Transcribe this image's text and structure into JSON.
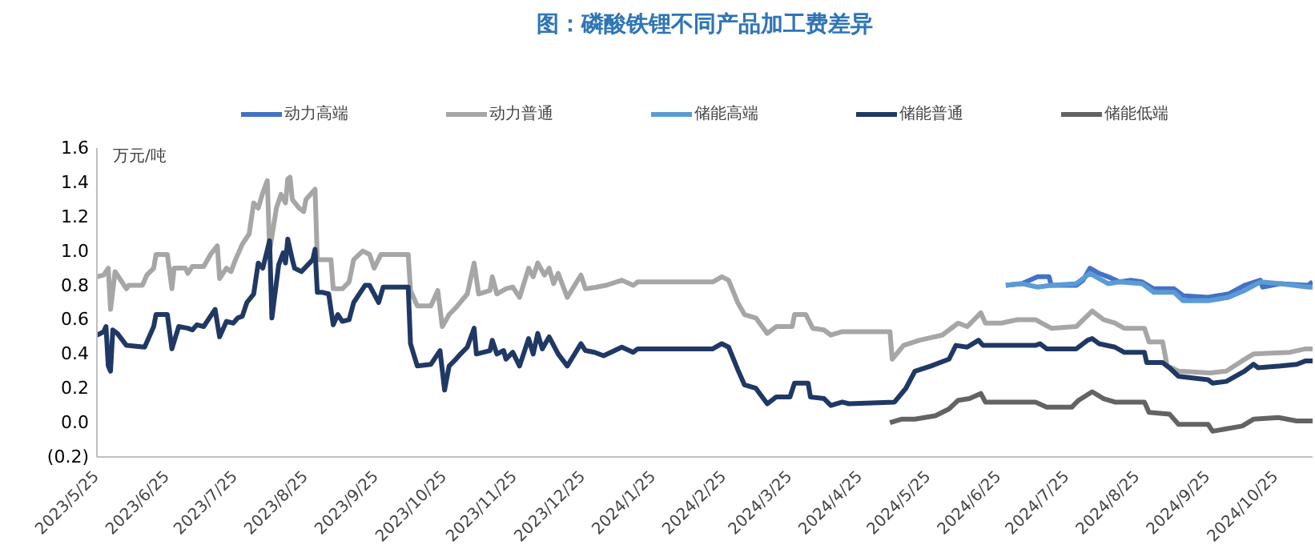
{
  "chart_data": {
    "type": "line",
    "title": "图：磷酸铁锂不同产品加工费差异",
    "ylabel": "万元/吨",
    "xlim": [
      "2023-05-25",
      "2024-11-10"
    ],
    "xticks": [
      {
        "value": "2023-05-25",
        "label": "2023/5/25"
      },
      {
        "value": "2023-06-25",
        "label": "2023/6/25"
      },
      {
        "value": "2023-07-25",
        "label": "2023/7/25"
      },
      {
        "value": "2023-08-25",
        "label": "2023/8/25"
      },
      {
        "value": "2023-09-25",
        "label": "2023/9/25"
      },
      {
        "value": "2023-10-25",
        "label": "2023/10/25"
      },
      {
        "value": "2023-11-25",
        "label": "2023/11/25"
      },
      {
        "value": "2023-12-25",
        "label": "2023/12/25"
      },
      {
        "value": "2024-01-25",
        "label": "2024/1/25"
      },
      {
        "value": "2024-02-25",
        "label": "2024/2/25"
      },
      {
        "value": "2024-03-25",
        "label": "2024/3/25"
      },
      {
        "value": "2024-04-25",
        "label": "2024/4/25"
      },
      {
        "value": "2024-05-25",
        "label": "2024/5/25"
      },
      {
        "value": "2024-06-25",
        "label": "2024/6/25"
      },
      {
        "value": "2024-07-25",
        "label": "2024/7/25"
      },
      {
        "value": "2024-08-25",
        "label": "2024/8/25"
      },
      {
        "value": "2024-09-25",
        "label": "2024/9/25"
      },
      {
        "value": "2024-10-25",
        "label": "2024/10/25"
      }
    ],
    "ylim": [
      -0.2,
      1.6
    ],
    "yticks": [
      {
        "value": -0.2,
        "label": "(0.2)"
      },
      {
        "value": 0,
        "label": "0.0"
      },
      {
        "value": 0.2,
        "label": "0.2"
      },
      {
        "value": 0.4,
        "label": "0.4"
      },
      {
        "value": 0.6,
        "label": "0.6"
      },
      {
        "value": 0.8,
        "label": "0.8"
      },
      {
        "value": 1,
        "label": "1.0"
      },
      {
        "value": 1.2,
        "label": "1.2"
      },
      {
        "value": 1.4,
        "label": "1.4"
      },
      {
        "value": 1.6,
        "label": "1.6"
      }
    ],
    "grid": false,
    "legend": "top",
    "marker": "none",
    "line_style": "solid",
    "series": [
      {
        "name": "动力高端",
        "color": "#4472c4",
        "x": [
          "2024-06-28",
          "2024-07-05",
          "2024-07-12",
          "2024-07-17",
          "2024-07-18",
          "2024-07-29",
          "2024-08-01",
          "2024-08-04",
          "2024-08-08",
          "2024-08-12",
          "2024-08-17",
          "2024-08-22",
          "2024-08-27",
          "2024-09-01",
          "2024-09-10",
          "2024-09-14",
          "2024-09-25",
          "2024-10-04",
          "2024-10-11",
          "2024-10-18",
          "2024-10-19",
          "2024-10-27",
          "2024-11-08",
          "2024-11-10"
        ],
        "values": [
          0.8,
          0.81,
          0.85,
          0.85,
          0.8,
          0.8,
          0.83,
          0.9,
          0.87,
          0.85,
          0.82,
          0.83,
          0.82,
          0.78,
          0.78,
          0.74,
          0.73,
          0.75,
          0.8,
          0.83,
          0.79,
          0.81,
          0.8,
          0.82
        ]
      },
      {
        "name": "动力普通",
        "color": "#a6a6a6",
        "x": [
          "2023-05-25",
          "2023-05-28",
          "2023-05-30",
          "2023-05-31",
          "2023-06-02",
          "2023-06-05",
          "2023-06-07",
          "2023-06-08",
          "2023-06-14",
          "2023-06-16",
          "2023-06-19",
          "2023-06-20",
          "2023-06-25",
          "2023-06-27",
          "2023-06-28",
          "2023-07-03",
          "2023-07-04",
          "2023-07-06",
          "2023-07-11",
          "2023-07-14",
          "2023-07-17",
          "2023-07-18",
          "2023-07-21",
          "2023-07-23",
          "2023-07-25",
          "2023-07-28",
          "2023-07-31",
          "2023-08-02",
          "2023-08-04",
          "2023-08-06",
          "2023-08-08",
          "2023-08-09",
          "2023-08-12",
          "2023-08-14",
          "2023-08-16",
          "2023-08-17",
          "2023-08-18",
          "2023-08-19",
          "2023-08-22",
          "2023-08-24",
          "2023-08-25",
          "2023-08-29",
          "2023-08-30",
          "2023-09-05",
          "2023-09-06",
          "2023-09-10",
          "2023-09-13",
          "2023-09-15",
          "2023-09-19",
          "2023-09-22",
          "2023-09-24",
          "2023-09-27",
          "2023-10-09",
          "2023-10-10",
          "2023-10-13",
          "2023-10-19",
          "2023-10-22",
          "2023-10-24",
          "2023-10-27",
          "2023-10-30",
          "2023-11-04",
          "2023-11-07",
          "2023-11-09",
          "2023-11-14",
          "2023-11-15",
          "2023-11-17",
          "2023-11-21",
          "2023-11-24",
          "2023-11-27",
          "2023-12-01",
          "2023-12-03",
          "2023-12-05",
          "2023-12-08",
          "2023-12-10",
          "2023-12-12",
          "2023-12-14",
          "2023-12-18",
          "2023-12-24",
          "2023-12-26",
          "2023-12-31",
          "2024-01-04",
          "2024-01-11",
          "2024-01-16",
          "2024-01-18",
          "2024-02-20",
          "2024-02-24",
          "2024-02-27",
          "2024-03-02",
          "2024-03-05",
          "2024-03-10",
          "2024-03-15",
          "2024-03-19",
          "2024-03-26",
          "2024-03-27",
          "2024-04-01",
          "2024-04-04",
          "2024-04-09",
          "2024-04-12",
          "2024-04-17",
          "2024-05-08",
          "2024-05-09",
          "2024-05-14",
          "2024-05-21",
          "2024-05-31",
          "2024-06-07",
          "2024-06-11",
          "2024-06-17",
          "2024-06-19",
          "2024-06-26",
          "2024-07-03",
          "2024-07-11",
          "2024-07-18",
          "2024-07-29",
          "2024-08-05",
          "2024-08-10",
          "2024-08-15",
          "2024-08-19",
          "2024-08-28",
          "2024-08-30",
          "2024-09-05",
          "2024-09-07",
          "2024-09-12",
          "2024-09-26",
          "2024-10-03",
          "2024-10-10",
          "2024-10-15",
          "2024-10-31",
          "2024-11-07",
          "2024-11-10"
        ],
        "values": [
          0.85,
          0.86,
          0.9,
          0.66,
          0.88,
          0.82,
          0.78,
          0.8,
          0.8,
          0.86,
          0.9,
          0.98,
          0.98,
          0.78,
          0.9,
          0.9,
          0.87,
          0.91,
          0.91,
          0.98,
          1.03,
          0.84,
          0.9,
          0.88,
          0.95,
          1.04,
          1.1,
          1.28,
          1.25,
          1.34,
          1.41,
          1.0,
          1.25,
          1.33,
          1.28,
          1.42,
          1.43,
          1.3,
          1.25,
          1.23,
          1.3,
          1.36,
          0.95,
          0.95,
          0.78,
          0.78,
          0.82,
          0.95,
          1.0,
          0.98,
          0.9,
          0.98,
          0.98,
          0.77,
          0.68,
          0.68,
          0.77,
          0.56,
          0.63,
          0.67,
          0.75,
          0.93,
          0.75,
          0.77,
          0.85,
          0.75,
          0.78,
          0.79,
          0.73,
          0.9,
          0.85,
          0.93,
          0.86,
          0.9,
          0.81,
          0.87,
          0.73,
          0.86,
          0.78,
          0.79,
          0.8,
          0.83,
          0.8,
          0.82,
          0.82,
          0.85,
          0.83,
          0.7,
          0.63,
          0.61,
          0.52,
          0.56,
          0.56,
          0.63,
          0.63,
          0.55,
          0.54,
          0.51,
          0.53,
          0.53,
          0.37,
          0.45,
          0.48,
          0.51,
          0.58,
          0.56,
          0.64,
          0.58,
          0.58,
          0.6,
          0.6,
          0.55,
          0.56,
          0.65,
          0.6,
          0.58,
          0.55,
          0.55,
          0.47,
          0.47,
          0.33,
          0.3,
          0.29,
          0.3,
          0.36,
          0.4,
          0.41,
          0.43,
          0.43
        ]
      },
      {
        "name": "储能高端",
        "color": "#5b9bd5",
        "x": [
          "2024-06-28",
          "2024-07-05",
          "2024-07-12",
          "2024-07-18",
          "2024-07-29",
          "2024-08-04",
          "2024-08-12",
          "2024-08-17",
          "2024-08-27",
          "2024-09-01",
          "2024-09-10",
          "2024-09-14",
          "2024-09-25",
          "2024-10-04",
          "2024-10-11",
          "2024-10-18",
          "2024-10-27",
          "2024-11-08",
          "2024-11-10"
        ],
        "values": [
          0.8,
          0.81,
          0.79,
          0.8,
          0.81,
          0.87,
          0.81,
          0.82,
          0.81,
          0.76,
          0.76,
          0.71,
          0.71,
          0.73,
          0.77,
          0.82,
          0.81,
          0.79,
          0.79
        ]
      },
      {
        "name": "储能普通",
        "color": "#203864",
        "x": [
          "2023-05-25",
          "2023-05-28",
          "2023-05-29",
          "2023-05-30",
          "2023-05-31",
          "2023-06-01",
          "2023-06-03",
          "2023-06-07",
          "2023-06-15",
          "2023-06-17",
          "2023-06-19",
          "2023-06-20",
          "2023-06-25",
          "2023-06-27",
          "2023-06-30",
          "2023-07-04",
          "2023-07-06",
          "2023-07-08",
          "2023-07-11",
          "2023-07-14",
          "2023-07-16",
          "2023-07-18",
          "2023-07-21",
          "2023-07-24",
          "2023-07-26",
          "2023-07-28",
          "2023-07-30",
          "2023-08-02",
          "2023-08-04",
          "2023-08-06",
          "2023-08-09",
          "2023-08-10",
          "2023-08-13",
          "2023-08-15",
          "2023-08-16",
          "2023-08-17",
          "2023-08-19",
          "2023-08-20",
          "2023-08-23",
          "2023-08-28",
          "2023-08-29",
          "2023-08-30",
          "2023-09-01",
          "2023-09-04",
          "2023-09-06",
          "2023-09-08",
          "2023-09-10",
          "2023-09-13",
          "2023-09-15",
          "2023-09-20",
          "2023-09-22",
          "2023-09-26",
          "2023-09-28",
          "2023-10-09",
          "2023-10-10",
          "2023-10-13",
          "2023-10-19",
          "2023-10-23",
          "2023-10-25",
          "2023-10-27",
          "2023-10-30",
          "2023-11-01",
          "2023-11-04",
          "2023-11-07",
          "2023-11-08",
          "2023-11-14",
          "2023-11-15",
          "2023-11-17",
          "2023-11-20",
          "2023-11-21",
          "2023-11-24",
          "2023-11-27",
          "2023-12-01",
          "2023-12-03",
          "2023-12-05",
          "2023-12-07",
          "2023-12-10",
          "2023-12-12",
          "2023-12-14",
          "2023-12-18",
          "2023-12-24",
          "2023-12-26",
          "2023-12-30",
          "2024-01-03",
          "2024-01-11",
          "2024-01-16",
          "2024-01-18",
          "2024-02-20",
          "2024-02-24",
          "2024-02-27",
          "2024-03-02",
          "2024-03-05",
          "2024-03-10",
          "2024-03-15",
          "2024-03-19",
          "2024-03-25",
          "2024-03-27",
          "2024-04-02",
          "2024-04-03",
          "2024-04-09",
          "2024-04-12",
          "2024-04-17",
          "2024-04-20",
          "2024-05-10",
          "2024-05-15",
          "2024-05-19",
          "2024-05-26",
          "2024-06-03",
          "2024-06-06",
          "2024-06-11",
          "2024-06-16",
          "2024-06-18",
          "2024-06-20",
          "2024-07-11",
          "2024-07-13",
          "2024-07-16",
          "2024-07-29",
          "2024-08-03",
          "2024-08-05",
          "2024-08-08",
          "2024-08-15",
          "2024-08-19",
          "2024-08-28",
          "2024-08-29",
          "2024-09-05",
          "2024-09-08",
          "2024-09-12",
          "2024-09-25",
          "2024-09-27",
          "2024-10-03",
          "2024-10-11",
          "2024-10-15",
          "2024-10-17",
          "2024-10-27",
          "2024-11-03",
          "2024-11-07",
          "2024-11-10"
        ],
        "values": [
          0.51,
          0.53,
          0.56,
          0.33,
          0.3,
          0.54,
          0.52,
          0.45,
          0.44,
          0.5,
          0.56,
          0.63,
          0.63,
          0.43,
          0.56,
          0.55,
          0.54,
          0.57,
          0.56,
          0.62,
          0.66,
          0.5,
          0.59,
          0.58,
          0.61,
          0.62,
          0.7,
          0.75,
          0.93,
          0.9,
          1.06,
          0.61,
          0.92,
          0.99,
          0.93,
          1.07,
          0.95,
          0.9,
          0.88,
          0.95,
          1.01,
          0.76,
          0.76,
          0.75,
          0.57,
          0.63,
          0.59,
          0.6,
          0.7,
          0.8,
          0.8,
          0.7,
          0.79,
          0.79,
          0.46,
          0.33,
          0.34,
          0.42,
          0.19,
          0.33,
          0.37,
          0.4,
          0.44,
          0.55,
          0.4,
          0.42,
          0.48,
          0.4,
          0.42,
          0.37,
          0.41,
          0.33,
          0.49,
          0.4,
          0.52,
          0.43,
          0.5,
          0.45,
          0.4,
          0.33,
          0.46,
          0.42,
          0.41,
          0.39,
          0.44,
          0.41,
          0.43,
          0.43,
          0.46,
          0.44,
          0.31,
          0.22,
          0.2,
          0.11,
          0.15,
          0.15,
          0.23,
          0.23,
          0.15,
          0.14,
          0.1,
          0.12,
          0.11,
          0.12,
          0.2,
          0.3,
          0.33,
          0.37,
          0.45,
          0.44,
          0.48,
          0.45,
          0.45,
          0.45,
          0.46,
          0.43,
          0.43,
          0.48,
          0.49,
          0.46,
          0.44,
          0.41,
          0.41,
          0.35,
          0.35,
          0.32,
          0.27,
          0.25,
          0.23,
          0.24,
          0.3,
          0.34,
          0.32,
          0.33,
          0.34,
          0.36,
          0.36
        ]
      },
      {
        "name": "储能低端",
        "color": "#636363",
        "x": [
          "2024-05-08",
          "2024-05-13",
          "2024-05-19",
          "2024-05-28",
          "2024-06-03",
          "2024-06-07",
          "2024-06-12",
          "2024-06-17",
          "2024-06-19",
          "2024-06-23",
          "2024-07-11",
          "2024-07-16",
          "2024-07-27",
          "2024-07-30",
          "2024-08-05",
          "2024-08-10",
          "2024-08-15",
          "2024-08-28",
          "2024-08-30",
          "2024-09-08",
          "2024-09-12",
          "2024-09-25",
          "2024-09-27",
          "2024-10-10",
          "2024-10-15",
          "2024-10-26",
          "2024-11-03",
          "2024-11-10"
        ],
        "values": [
          0.0,
          0.02,
          0.02,
          0.04,
          0.08,
          0.13,
          0.14,
          0.17,
          0.12,
          0.12,
          0.12,
          0.09,
          0.09,
          0.13,
          0.18,
          0.14,
          0.12,
          0.12,
          0.06,
          0.05,
          -0.01,
          -0.01,
          -0.05,
          -0.02,
          0.02,
          0.03,
          0.01,
          0.01
        ]
      }
    ]
  }
}
